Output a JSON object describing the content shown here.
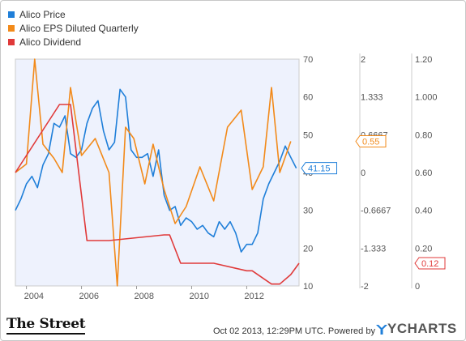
{
  "chart_data": {
    "type": "line",
    "legend": {
      "placement": "top-left",
      "items": [
        {
          "label": "Alico Price",
          "color": "#1f7fd9"
        },
        {
          "label": "Alico EPS Diluted Quarterly",
          "color": "#f28a1a"
        },
        {
          "label": "Alico Dividend",
          "color": "#e03a3a"
        }
      ]
    },
    "x_axis": {
      "ticks": [
        "2004",
        "2006",
        "2008",
        "2010",
        "2012"
      ],
      "tick_values": [
        2004,
        2006,
        2008,
        2010,
        2012
      ],
      "range": [
        2003.6,
        2013.9
      ]
    },
    "y_axes": [
      {
        "series": "Alico Price",
        "range": [
          10,
          70
        ],
        "ticks": [
          "70",
          "60",
          "50",
          "40",
          "30",
          "20",
          "10"
        ],
        "tick_values": [
          70,
          60,
          50,
          40,
          30,
          20,
          10
        ]
      },
      {
        "series": "Alico EPS Diluted Quarterly",
        "range": [
          -2,
          2
        ],
        "ticks": [
          "2",
          "1.333",
          "0.6667",
          "0",
          "-0.6667",
          "-1.333",
          "-2"
        ],
        "tick_values": [
          2,
          1.333,
          0.6667,
          0,
          -0.6667,
          -1.333,
          -2
        ]
      },
      {
        "series": "Alico Dividend",
        "range": [
          0,
          1.2
        ],
        "ticks": [
          "1.20",
          "1.000",
          "0.80",
          "0.60",
          "0.40",
          "0.20",
          "0"
        ],
        "tick_values": [
          1.2,
          1.0,
          0.8,
          0.6,
          0.4,
          0.2,
          0
        ]
      }
    ],
    "grid": false,
    "series": [
      {
        "name": "Alico Price",
        "color": "#1f7fd9",
        "axis": 0,
        "x": [
          2003.6,
          2003.8,
          2004.0,
          2004.2,
          2004.4,
          2004.6,
          2004.8,
          2005.0,
          2005.2,
          2005.4,
          2005.6,
          2005.8,
          2006.0,
          2006.2,
          2006.4,
          2006.6,
          2006.8,
          2007.0,
          2007.2,
          2007.4,
          2007.6,
          2007.8,
          2008.0,
          2008.2,
          2008.4,
          2008.6,
          2008.8,
          2009.0,
          2009.2,
          2009.4,
          2009.6,
          2009.8,
          2010.0,
          2010.2,
          2010.4,
          2010.6,
          2010.8,
          2011.0,
          2011.2,
          2011.4,
          2011.6,
          2011.8,
          2012.0,
          2012.2,
          2012.4,
          2012.6,
          2012.8,
          2013.0,
          2013.2,
          2013.4,
          2013.6,
          2013.8
        ],
        "y": [
          30,
          33,
          37,
          39,
          36,
          42,
          45,
          53,
          52,
          55,
          45,
          44,
          46,
          53,
          57,
          59,
          51,
          46,
          48,
          62,
          60,
          46,
          44,
          44,
          45,
          39,
          46,
          34,
          30,
          31,
          26,
          28,
          27,
          25,
          26,
          24,
          23,
          27,
          25,
          27,
          24,
          19,
          21,
          21,
          24,
          33,
          37,
          40,
          43,
          47,
          44,
          41.15
        ]
      },
      {
        "name": "Alico EPS Diluted Quarterly",
        "color": "#f28a1a",
        "axis": 1,
        "x": [
          2003.6,
          2004.0,
          2004.3,
          2004.6,
          2005.0,
          2005.3,
          2005.6,
          2006.0,
          2006.5,
          2007.0,
          2007.3,
          2007.6,
          2007.9,
          2008.3,
          2008.6,
          2009.0,
          2009.4,
          2009.8,
          2010.3,
          2010.8,
          2011.3,
          2011.8,
          2012.2,
          2012.6,
          2012.9,
          2013.2,
          2013.6
        ],
        "y": [
          0.0,
          0.15,
          2.0,
          0.5,
          0.25,
          0.0,
          1.5,
          0.3,
          0.6,
          0.0,
          -2.0,
          0.8,
          0.6,
          -0.2,
          0.5,
          -0.3,
          -0.9,
          -0.6,
          0.1,
          -0.5,
          0.8,
          1.1,
          -0.3,
          0.1,
          1.5,
          0.0,
          0.55
        ]
      },
      {
        "name": "Alico Dividend",
        "color": "#e03a3a",
        "axis": 2,
        "x": [
          2003.6,
          2005.2,
          2005.4,
          2005.6,
          2006.2,
          2006.5,
          2007.0,
          2009.0,
          2009.2,
          2009.6,
          2010.8,
          2012.0,
          2012.2,
          2012.9,
          2013.2,
          2013.6,
          2013.9
        ],
        "y": [
          0.6,
          0.96,
          0.96,
          0.96,
          0.24,
          0.24,
          0.24,
          0.27,
          0.27,
          0.12,
          0.12,
          0.08,
          0.08,
          0.01,
          0.01,
          0.06,
          0.12
        ]
      }
    ],
    "end_labels": [
      {
        "series": "Alico Price",
        "value": 41.15,
        "text": "41.15",
        "color": "#1f7fd9"
      },
      {
        "series": "Alico EPS Diluted Quarterly",
        "value": 0.55,
        "text": "0.55",
        "color": "#f28a1a"
      },
      {
        "series": "Alico Dividend",
        "value": 0.12,
        "text": "0.12",
        "color": "#e03a3a"
      }
    ]
  },
  "branding": {
    "publisher": "The Street",
    "timestamp": "Oct 02 2013, 12:29PM UTC.",
    "powered_by": "Powered by",
    "provider": "YCHARTS"
  }
}
